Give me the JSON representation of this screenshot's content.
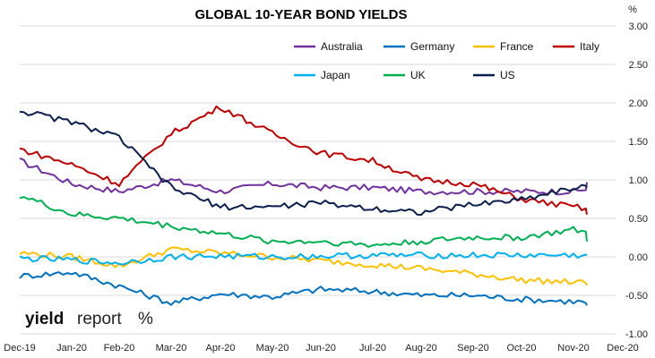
{
  "chart_data": {
    "type": "line",
    "title": "GLOBAL 10-YEAR BOND YIELDS",
    "ylabel": "%",
    "ylim": [
      -1.0,
      3.0
    ],
    "yticks": [
      3.0,
      2.5,
      2.0,
      1.5,
      1.0,
      0.5,
      0.0,
      -0.5,
      -1.0
    ],
    "ytick_labels": [
      "3.00",
      "2.50",
      "2.00",
      "1.50",
      "1.00",
      "0.50",
      "0.00",
      "-0.50",
      "-1.00"
    ],
    "x_ticks": [
      "Dec-19",
      "Jan-20",
      "Feb-20",
      "Mar-20",
      "Apr-20",
      "May-20",
      "Jun-20",
      "Jul-20",
      "Aug-20",
      "Sep-20",
      "Oct-20",
      "Nov-20",
      "Dec-20"
    ],
    "grid": true,
    "legend_position": "top-right",
    "x": [
      "Dec-19",
      "Jan-20",
      "Feb-20",
      "Mar-20",
      "Apr-20",
      "May-20",
      "Jun-20",
      "Jul-20",
      "Aug-20",
      "Sep-20",
      "Oct-20",
      "Nov-20",
      "Dec-20"
    ],
    "series": [
      {
        "name": "Australia",
        "color": "#7030A0",
        "values": [
          1.25,
          0.95,
          0.85,
          1.0,
          0.85,
          0.95,
          0.9,
          0.9,
          0.85,
          0.85,
          0.85,
          0.85,
          0.97
        ]
      },
      {
        "name": "Germany",
        "color": "#0070C0",
        "values": [
          -0.25,
          -0.2,
          -0.38,
          -0.6,
          -0.48,
          -0.52,
          -0.42,
          -0.45,
          -0.5,
          -0.5,
          -0.55,
          -0.58,
          -0.63
        ]
      },
      {
        "name": "France",
        "color": "#FFC000",
        "values": [
          0.05,
          0.0,
          -0.12,
          0.1,
          0.05,
          0.0,
          -0.05,
          -0.1,
          -0.15,
          -0.22,
          -0.3,
          -0.33,
          -0.37
        ]
      },
      {
        "name": "Italy",
        "color": "#C00000",
        "values": [
          1.4,
          1.2,
          0.95,
          1.6,
          1.95,
          1.6,
          1.35,
          1.25,
          1.0,
          0.95,
          0.75,
          0.65,
          0.55
        ]
      },
      {
        "name": "Japan",
        "color": "#00B0F0",
        "values": [
          -0.02,
          -0.04,
          -0.08,
          0.0,
          0.01,
          0.0,
          0.01,
          0.02,
          0.02,
          0.02,
          0.02,
          0.02,
          0.02
        ]
      },
      {
        "name": "UK",
        "color": "#00B050",
        "values": [
          0.8,
          0.55,
          0.5,
          0.4,
          0.3,
          0.2,
          0.2,
          0.15,
          0.2,
          0.25,
          0.25,
          0.35,
          0.2
        ]
      },
      {
        "name": "US",
        "color": "#0B1F4F",
        "values": [
          1.9,
          1.75,
          1.55,
          0.9,
          0.65,
          0.65,
          0.7,
          0.63,
          0.58,
          0.68,
          0.75,
          0.9,
          0.9
        ]
      }
    ]
  },
  "logo": {
    "part1": "yield",
    "part2": "report",
    "symbol": "%"
  }
}
